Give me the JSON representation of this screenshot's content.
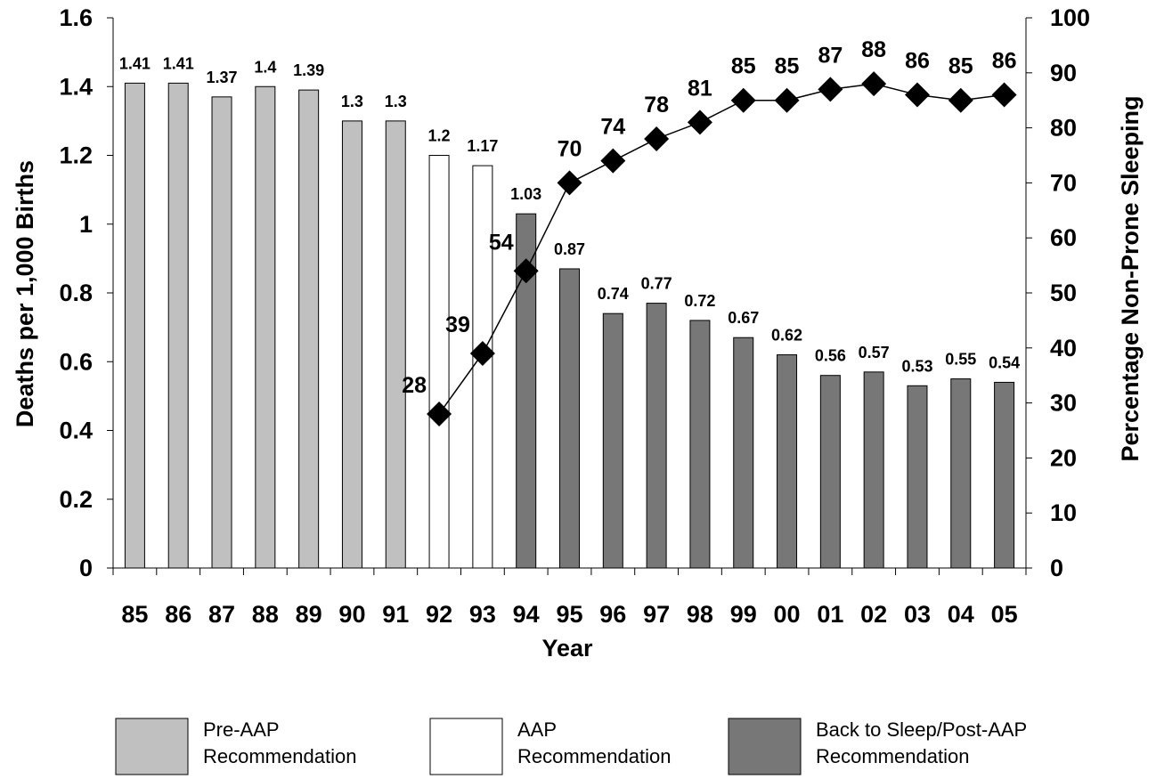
{
  "chart_data": {
    "type": "bar",
    "xlabel": "Year",
    "ylabel": "Deaths per 1,000 Births",
    "y2label": "Percentage Non-Prone Sleeping",
    "ylim": [
      0,
      1.6
    ],
    "y2lim": [
      0,
      100
    ],
    "yticks": [
      "0",
      "0.2",
      "0.4",
      "0.6",
      "0.8",
      "1",
      "1.2",
      "1.4",
      "1.6"
    ],
    "y2ticks": [
      "0",
      "10",
      "20",
      "30",
      "40",
      "50",
      "60",
      "70",
      "80",
      "90",
      "100"
    ],
    "categories": [
      "85",
      "86",
      "87",
      "88",
      "89",
      "90",
      "91",
      "92",
      "93",
      "94",
      "95",
      "96",
      "97",
      "98",
      "99",
      "00",
      "01",
      "02",
      "03",
      "04",
      "05"
    ],
    "bars": {
      "values": [
        1.41,
        1.41,
        1.37,
        1.4,
        1.39,
        1.3,
        1.3,
        1.2,
        1.17,
        1.03,
        0.87,
        0.74,
        0.77,
        0.72,
        0.67,
        0.62,
        0.56,
        0.57,
        0.53,
        0.55,
        0.54
      ],
      "groups": [
        0,
        0,
        0,
        0,
        0,
        0,
        0,
        1,
        1,
        2,
        2,
        2,
        2,
        2,
        2,
        2,
        2,
        2,
        2,
        2,
        2
      ]
    },
    "line": {
      "axis": "right",
      "start_index": 7,
      "values": [
        28,
        39,
        54,
        70,
        74,
        78,
        81,
        85,
        85,
        87,
        88,
        86,
        85,
        86
      ],
      "color": "#000000",
      "marker": "diamond"
    },
    "legend": {
      "placement": "bottom",
      "entries": [
        {
          "label_line1": "Pre-AAP",
          "label_line2": "Recommendation",
          "color": "#c0c0c0"
        },
        {
          "label_line1": "AAP",
          "label_line2": "Recommendation",
          "color": "#ffffff"
        },
        {
          "label_line1": "Back to Sleep/Post-AAP",
          "label_line2": "Recommendation",
          "color": "#777777"
        }
      ]
    },
    "grid": false
  }
}
